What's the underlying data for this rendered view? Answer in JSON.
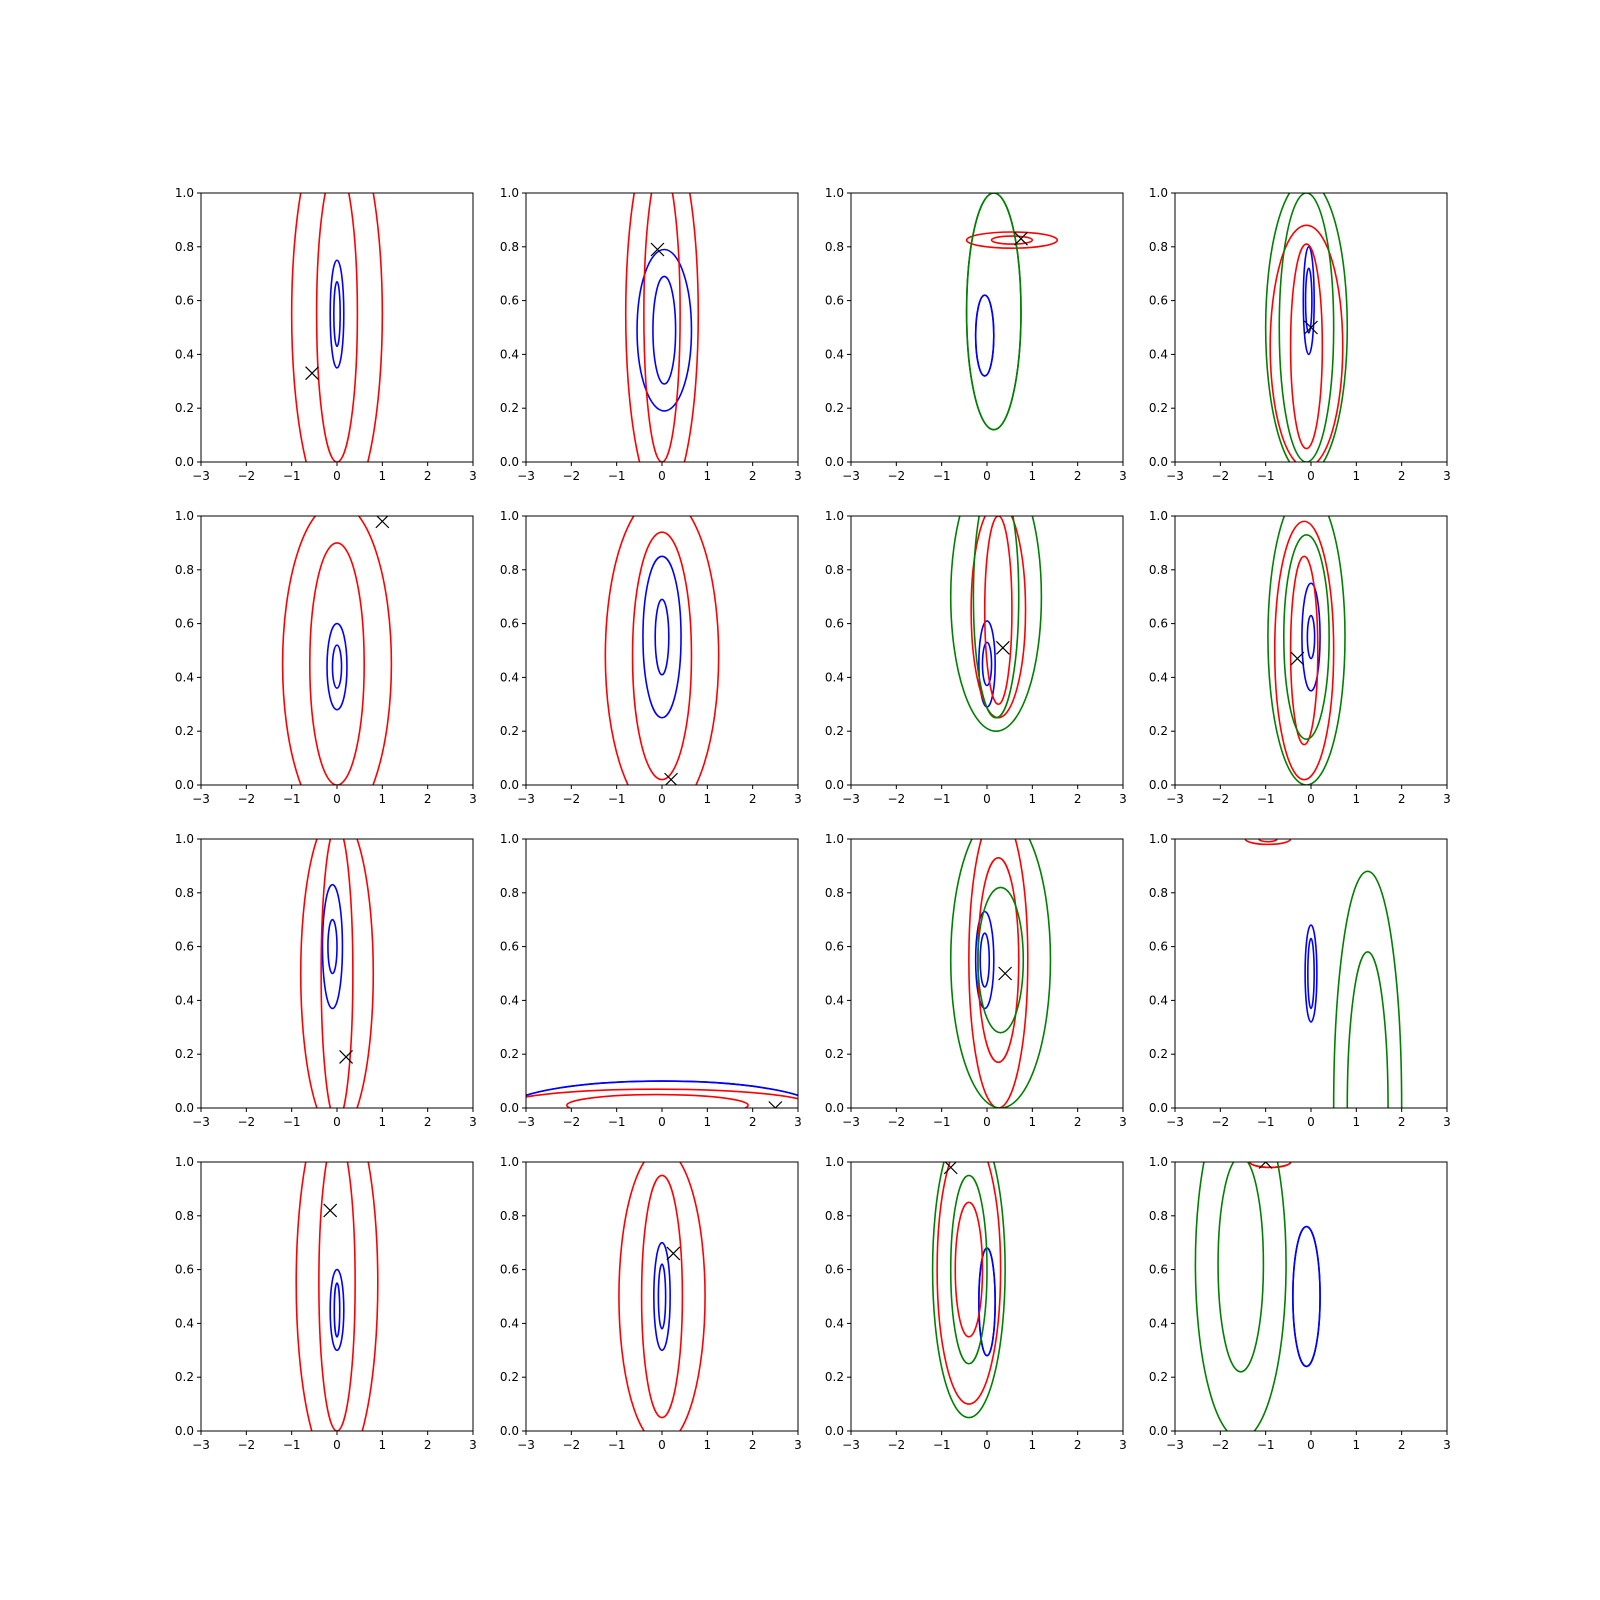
{
  "chart_data": {
    "type": "contour",
    "layout": {
      "rows": 4,
      "cols": 4
    },
    "xlim": [
      -3,
      3
    ],
    "ylim": [
      0,
      1
    ],
    "xticks": [
      -3,
      -2,
      -1,
      0,
      1,
      2,
      3
    ],
    "yticks": [
      0.0,
      0.2,
      0.4,
      0.6,
      0.8,
      1.0
    ],
    "colors": {
      "blue": "#0000ff",
      "red": "#ff0000",
      "green": "#008000",
      "marker": "#000000"
    },
    "panels": [
      {
        "marker": [
          -0.55,
          0.33
        ],
        "contours": [
          {
            "color": "blue",
            "cx": 0.0,
            "cy": 0.55,
            "rx": [
              0.07,
              0.15
            ],
            "ry": [
              0.12,
              0.2
            ]
          },
          {
            "color": "red",
            "cx": 0.0,
            "cy": 0.55,
            "rx": [
              0.45,
              1.0
            ],
            "ry": [
              0.55,
              0.75
            ]
          }
        ]
      },
      {
        "marker": [
          -0.1,
          0.79
        ],
        "contours": [
          {
            "color": "blue",
            "cx": 0.05,
            "cy": 0.49,
            "rx": [
              0.25,
              0.6
            ],
            "ry": [
              0.2,
              0.3
            ]
          },
          {
            "color": "red",
            "cx": 0.0,
            "cy": 0.55,
            "rx": [
              0.4,
              0.8
            ],
            "ry": [
              0.55,
              0.7
            ]
          }
        ]
      },
      {
        "marker": [
          0.75,
          0.83
        ],
        "contours": [
          {
            "color": "blue",
            "cx": -0.05,
            "cy": 0.47,
            "rx": [
              0.2,
              0.2
            ],
            "ry": [
              0.15,
              0.15
            ]
          },
          {
            "color": "red",
            "cx": 0.55,
            "cy": 0.825,
            "rx": [
              0.45,
              1.0
            ],
            "ry": [
              0.015,
              0.03
            ]
          },
          {
            "color": "green",
            "cx": 0.15,
            "cy": 0.56,
            "rx": [
              0.6,
              0.6
            ],
            "ry": [
              0.44,
              0.44
            ]
          }
        ]
      },
      {
        "marker": [
          0.0,
          0.5
        ],
        "contours": [
          {
            "color": "blue",
            "cx": -0.05,
            "cy": 0.6,
            "rx": [
              0.07,
              0.12
            ],
            "ry": [
              0.12,
              0.2
            ]
          },
          {
            "color": "red",
            "cx": -0.1,
            "cy": 0.43,
            "rx": [
              0.35,
              0.8
            ],
            "ry": [
              0.38,
              0.45
            ]
          },
          {
            "color": "green",
            "cx": -0.1,
            "cy": 0.5,
            "rx": [
              0.6,
              0.9
            ],
            "ry": [
              0.5,
              0.55
            ]
          }
        ]
      },
      {
        "marker": [
          1.0,
          0.98
        ],
        "contours": [
          {
            "color": "blue",
            "cx": 0.0,
            "cy": 0.44,
            "rx": [
              0.1,
              0.22
            ],
            "ry": [
              0.08,
              0.16
            ]
          },
          {
            "color": "red",
            "cx": 0.0,
            "cy": 0.45,
            "rx": [
              0.6,
              1.2
            ],
            "ry": [
              0.45,
              0.6
            ]
          }
        ]
      },
      {
        "marker": [
          0.2,
          0.02
        ],
        "contours": [
          {
            "color": "blue",
            "cx": 0.0,
            "cy": 0.55,
            "rx": [
              0.15,
              0.42
            ],
            "ry": [
              0.14,
              0.3
            ]
          },
          {
            "color": "red",
            "cx": 0.0,
            "cy": 0.48,
            "rx": [
              0.65,
              1.25
            ],
            "ry": [
              0.46,
              0.6
            ]
          }
        ]
      },
      {
        "marker": [
          0.35,
          0.51
        ],
        "contours": [
          {
            "color": "blue",
            "cx": 0.0,
            "cy": 0.45,
            "rx": [
              0.1,
              0.18
            ],
            "ry": [
              0.08,
              0.16
            ]
          },
          {
            "color": "red",
            "cx": 0.25,
            "cy": 0.65,
            "rx": [
              0.3,
              0.6
            ],
            "ry": [
              0.35,
              0.4
            ]
          },
          {
            "color": "green",
            "cx": 0.2,
            "cy": 0.7,
            "rx": [
              0.5,
              1.0
            ],
            "ry": [
              0.45,
              0.5
            ]
          }
        ]
      },
      {
        "marker": [
          -0.3,
          0.47
        ],
        "contours": [
          {
            "color": "blue",
            "cx": 0.0,
            "cy": 0.55,
            "rx": [
              0.08,
              0.2
            ],
            "ry": [
              0.08,
              0.2
            ]
          },
          {
            "color": "red",
            "cx": -0.15,
            "cy": 0.5,
            "rx": [
              0.3,
              0.65
            ],
            "ry": [
              0.35,
              0.48
            ]
          },
          {
            "color": "green",
            "cx": -0.1,
            "cy": 0.55,
            "rx": [
              0.5,
              0.85
            ],
            "ry": [
              0.38,
              0.55
            ]
          }
        ]
      },
      {
        "marker": [
          0.2,
          0.19
        ],
        "contours": [
          {
            "color": "blue",
            "cx": -0.1,
            "cy": 0.6,
            "rx": [
              0.1,
              0.22
            ],
            "ry": [
              0.1,
              0.23
            ]
          },
          {
            "color": "red",
            "cx": 0.0,
            "cy": 0.5,
            "rx": [
              0.35,
              0.8
            ],
            "ry": [
              0.55,
              0.6
            ]
          }
        ]
      },
      {
        "marker": [
          2.5,
          0.0
        ],
        "contours": [
          {
            "color": "blue",
            "cx": 0.0,
            "cy": 0.0,
            "rx": [
              3.4,
              3.4
            ],
            "ry": [
              0.1,
              0.1
            ]
          },
          {
            "color": "red",
            "cx": -0.1,
            "cy": 0.01,
            "rx": [
              2.0,
              3.4
            ],
            "ry": [
              0.04,
              0.06
            ]
          }
        ]
      },
      {
        "marker": [
          0.4,
          0.5
        ],
        "contours": [
          {
            "color": "blue",
            "cx": -0.05,
            "cy": 0.55,
            "rx": [
              0.1,
              0.2
            ],
            "ry": [
              0.1,
              0.18
            ]
          },
          {
            "color": "red",
            "cx": 0.25,
            "cy": 0.55,
            "rx": [
              0.45,
              0.65
            ],
            "ry": [
              0.38,
              0.55
            ]
          },
          {
            "color": "green",
            "cx": 0.3,
            "cy": 0.55,
            "rx": [
              0.5,
              1.1
            ],
            "ry": [
              0.27,
              0.55
            ]
          }
        ]
      },
      {
        "marker": null,
        "contours": [
          {
            "color": "blue",
            "cx": 0.0,
            "cy": 0.5,
            "rx": [
              0.07,
              0.13
            ],
            "ry": [
              0.13,
              0.18
            ]
          },
          {
            "color": "red",
            "cx": -0.95,
            "cy": 1.0,
            "rx": [
              0.2,
              0.5
            ],
            "ry": [
              0.01,
              0.02
            ]
          },
          {
            "color": "green",
            "cx": 1.25,
            "cy": 0.0,
            "rx": [
              0.45,
              0.75
            ],
            "ry": [
              0.58,
              0.88
            ]
          }
        ]
      },
      {
        "marker": [
          -0.15,
          0.82
        ],
        "contours": [
          {
            "color": "blue",
            "cx": 0.0,
            "cy": 0.45,
            "rx": [
              0.06,
              0.15
            ],
            "ry": [
              0.1,
              0.15
            ]
          },
          {
            "color": "red",
            "cx": 0.0,
            "cy": 0.55,
            "rx": [
              0.4,
              0.9
            ],
            "ry": [
              0.55,
              0.7
            ]
          }
        ]
      },
      {
        "marker": [
          0.25,
          0.66
        ],
        "contours": [
          {
            "color": "blue",
            "cx": 0.0,
            "cy": 0.5,
            "rx": [
              0.08,
              0.18
            ],
            "ry": [
              0.12,
              0.2
            ]
          },
          {
            "color": "red",
            "cx": 0.0,
            "cy": 0.5,
            "rx": [
              0.45,
              0.95
            ],
            "ry": [
              0.45,
              0.55
            ]
          }
        ]
      },
      {
        "marker": [
          -0.8,
          0.98
        ],
        "contours": [
          {
            "color": "blue",
            "cx": 0.0,
            "cy": 0.48,
            "rx": [
              0.18,
              0.18
            ],
            "ry": [
              0.2,
              0.2
            ]
          },
          {
            "color": "red",
            "cx": -0.4,
            "cy": 0.6,
            "rx": [
              0.3,
              0.7
            ],
            "ry": [
              0.25,
              0.5
            ]
          },
          {
            "color": "green",
            "cx": -0.4,
            "cy": 0.6,
            "rx": [
              0.4,
              0.8
            ],
            "ry": [
              0.35,
              0.55
            ]
          }
        ]
      },
      {
        "marker": [
          -1.0,
          1.0
        ],
        "contours": [
          {
            "color": "blue",
            "cx": -0.1,
            "cy": 0.5,
            "rx": [
              0.3,
              0.3
            ],
            "ry": [
              0.26,
              0.26
            ]
          },
          {
            "color": "red",
            "cx": -0.9,
            "cy": 1.0,
            "rx": [
              0.45,
              0.45
            ],
            "ry": [
              0.02,
              0.02
            ]
          },
          {
            "color": "green",
            "cx": -1.55,
            "cy": 0.62,
            "rx": [
              0.5,
              1.0
            ],
            "ry": [
              0.4,
              0.65
            ]
          }
        ]
      }
    ]
  }
}
